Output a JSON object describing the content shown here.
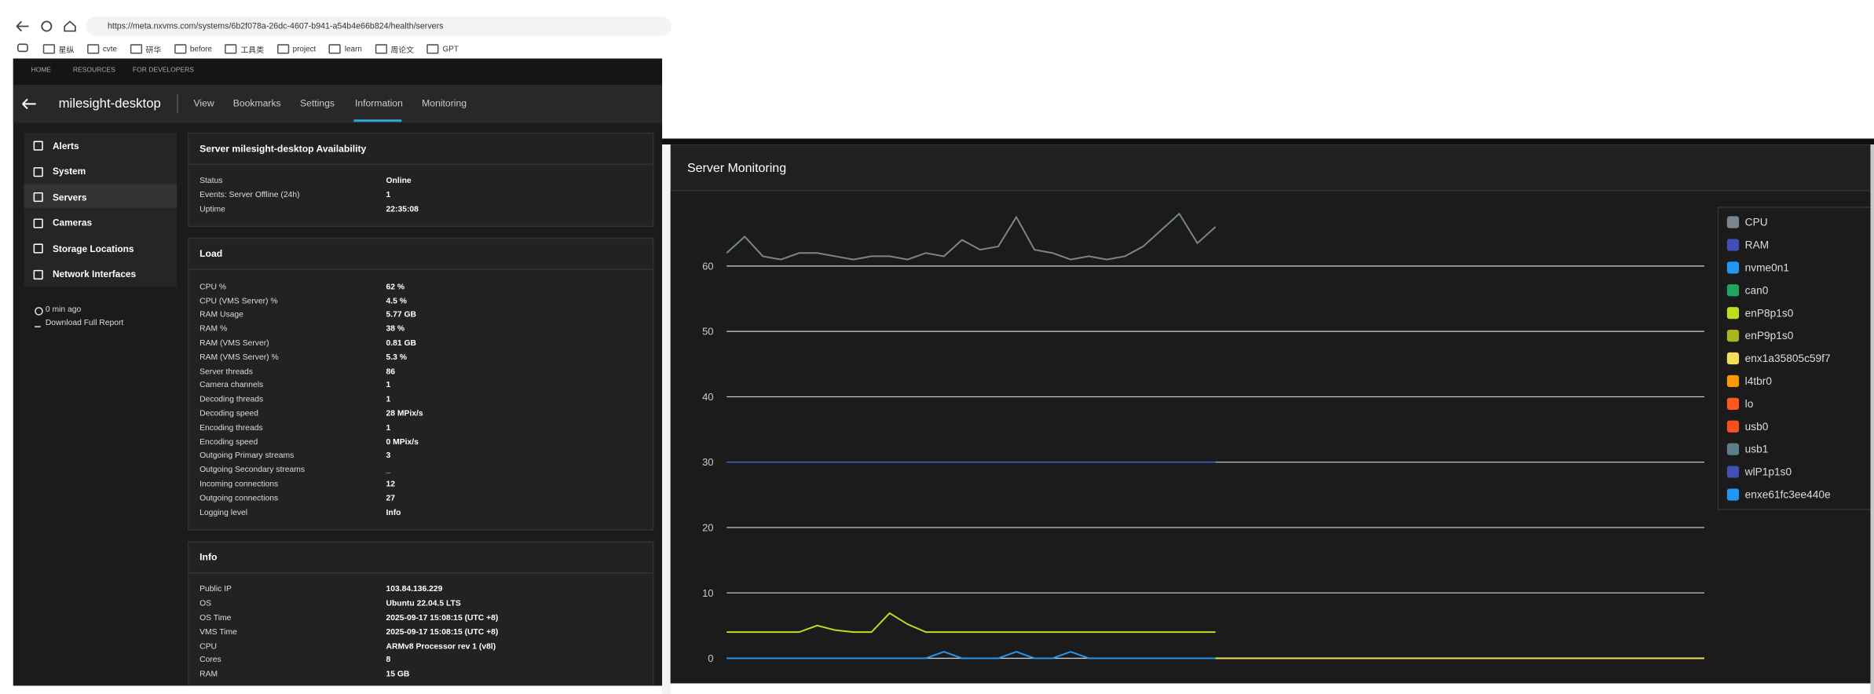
{
  "browser": {
    "url": "https://meta.nxvms.com/systems/6b2f078a-26dc-4607-b941-a54b4e66b824/health/servers",
    "bookmarks": [
      "星纵",
      "cvte",
      "研华",
      "before",
      "工具类",
      "project",
      "learn",
      "周论文",
      "GPT"
    ]
  },
  "topnav": [
    "HOME",
    "RESOURCES",
    "FOR DEVELOPERS"
  ],
  "header": {
    "title": "milesight-desktop",
    "tabs": [
      "View",
      "Bookmarks",
      "Settings",
      "Information",
      "Monitoring"
    ]
  },
  "sidebar": {
    "items": [
      "Alerts",
      "System",
      "Servers",
      "Cameras",
      "Storage Locations",
      "Network Interfaces"
    ],
    "refresh": "0 min ago",
    "download": "Download Full Report"
  },
  "cards": [
    {
      "title": "Server milesight-desktop Availability",
      "rows": [
        [
          "Status",
          "Online"
        ],
        [
          "Events: Server Offline (24h)",
          "1"
        ],
        [
          "Uptime",
          "22:35:08"
        ]
      ]
    },
    {
      "title": "Load",
      "rows": [
        [
          "CPU %",
          "62 %"
        ],
        [
          "CPU (VMS Server) %",
          "4.5 %"
        ],
        [
          "RAM Usage",
          "5.77 GB"
        ],
        [
          "RAM %",
          "38 %"
        ],
        [
          "RAM (VMS Server)",
          "0.81 GB"
        ],
        [
          "RAM (VMS Server) %",
          "5.3 %"
        ],
        [
          "Server threads",
          "86"
        ],
        [
          "Camera channels",
          "1"
        ],
        [
          "Decoding threads",
          "1"
        ],
        [
          "Decoding speed",
          "28 MPix/s"
        ],
        [
          "Encoding threads",
          "1"
        ],
        [
          "Encoding speed",
          "0 MPix/s"
        ],
        [
          "Outgoing Primary streams",
          "3"
        ],
        [
          "Outgoing Secondary streams",
          "_"
        ],
        [
          "Incoming connections",
          "12"
        ],
        [
          "Outgoing connections",
          "27"
        ],
        [
          "Logging level",
          "Info"
        ]
      ]
    },
    {
      "title": "Info",
      "rows": [
        [
          "Public IP",
          "103.84.136.229"
        ],
        [
          "OS",
          "Ubuntu 22.04.5 LTS"
        ],
        [
          "OS Time",
          "2025-09-17 15:08:15 (UTC +8)"
        ],
        [
          "VMS Time",
          "2025-09-17 15:08:15 (UTC +8)"
        ],
        [
          "CPU",
          "ARMv8 Processor rev 1 (v8l)"
        ],
        [
          "Cores",
          "8"
        ],
        [
          "RAM",
          "15 GB"
        ]
      ]
    }
  ],
  "monitoring": {
    "title": "Server Monitoring",
    "chart_data": {
      "type": "line",
      "ylim": [
        0,
        70
      ],
      "yticks": [
        0,
        10,
        20,
        30,
        40,
        50,
        60
      ],
      "grid": true,
      "series": [
        {
          "name": "CPU",
          "color": "#78868f",
          "values": [
            62,
            64.5,
            61.5,
            61,
            62,
            62,
            61.5,
            61,
            61.5,
            61.5,
            61,
            62,
            61.5,
            64,
            62.5,
            63,
            67.5,
            62.5,
            62,
            61,
            61.5,
            61,
            61.5,
            63,
            65.5,
            68,
            63.5,
            66,
            null,
            null,
            null,
            null,
            null,
            null,
            null,
            null,
            null,
            null,
            null,
            null,
            null,
            null,
            null,
            null,
            null,
            null,
            null,
            null,
            null,
            null,
            null,
            null,
            null,
            null,
            null
          ]
        },
        {
          "name": "RAM",
          "color": "#3f51b5",
          "values": [
            30,
            30,
            30,
            30,
            30,
            30,
            30,
            30,
            30,
            30,
            30,
            30,
            30,
            30,
            30,
            30,
            30,
            30,
            30,
            30,
            30,
            30,
            30,
            30,
            30,
            30,
            30,
            30,
            null,
            null,
            null,
            null,
            null,
            null,
            null,
            null,
            null,
            null,
            null,
            null,
            null,
            null,
            null,
            null,
            null,
            null,
            null,
            null,
            null,
            null,
            null,
            null,
            null,
            null,
            null
          ]
        },
        {
          "name": "nvme0n1",
          "color": "#2196f3",
          "values": [
            0,
            0,
            0,
            0,
            0,
            0,
            0,
            0,
            0,
            0,
            0,
            0,
            1,
            0,
            0,
            0,
            1,
            0,
            0,
            1,
            0,
            0,
            0,
            0,
            0,
            0,
            0,
            0,
            null,
            null,
            null,
            null,
            null,
            null,
            null,
            null,
            null,
            null,
            null,
            null,
            null,
            null,
            null,
            null,
            null,
            null,
            null,
            null,
            null,
            null,
            null,
            null,
            null,
            null,
            null
          ]
        },
        {
          "name": "can0",
          "color": "#1fa463"
        },
        {
          "name": "enP8p1s0",
          "color": "#b9e01f",
          "values": [
            4,
            4,
            4,
            4,
            4,
            5,
            4.3,
            4,
            4,
            6.9,
            5.2,
            4,
            4,
            4,
            4,
            4,
            4,
            4,
            4,
            4,
            4,
            4,
            4,
            4,
            4,
            4,
            4,
            4,
            null,
            null,
            null,
            null,
            null,
            null,
            null,
            null,
            null,
            null,
            null,
            null,
            null,
            null,
            null,
            null,
            null,
            null,
            null,
            null,
            null,
            null,
            null,
            null,
            null,
            null,
            null
          ]
        },
        {
          "name": "enP9p1s0",
          "color": "#a9b520"
        },
        {
          "name": "enx1a35805c59f7",
          "color": "#f3df5b",
          "values": [
            null,
            null,
            null,
            null,
            null,
            null,
            null,
            null,
            null,
            null,
            null,
            null,
            null,
            null,
            null,
            null,
            null,
            null,
            null,
            null,
            null,
            null,
            null,
            null,
            null,
            null,
            null,
            0,
            0,
            0,
            0,
            0,
            0,
            0,
            0,
            0,
            0,
            0,
            0,
            0,
            0,
            0,
            0,
            0,
            0,
            0,
            0,
            0,
            0,
            0,
            0,
            0,
            0,
            0,
            0
          ]
        },
        {
          "name": "l4tbr0",
          "color": "#ff9800"
        },
        {
          "name": "lo",
          "color": "#ff5722"
        },
        {
          "name": "usb0",
          "color": "#f4511e"
        },
        {
          "name": "usb1",
          "color": "#607d8b"
        },
        {
          "name": "wlP1p1s0",
          "color": "#3f51b5"
        },
        {
          "name": "enxe61fc3ee440e",
          "color": "#2196f3"
        }
      ]
    }
  }
}
